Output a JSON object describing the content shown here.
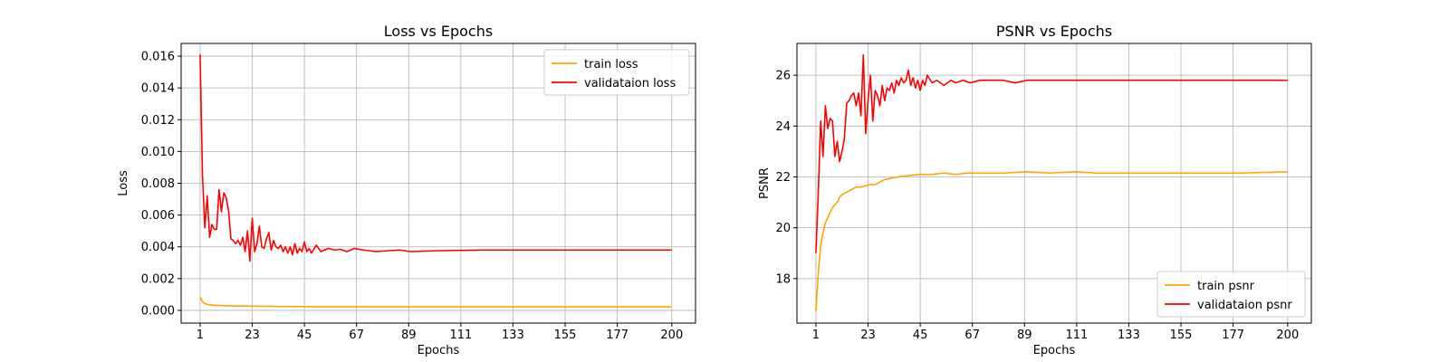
{
  "chart_data": [
    {
      "type": "line",
      "title": "Loss vs Epochs",
      "xlabel": "Epochs",
      "ylabel": "Loss",
      "xlim": [
        -7,
        210
      ],
      "ylim": [
        -0.0008,
        0.0168
      ],
      "xticks": [
        1,
        23,
        45,
        67,
        89,
        111,
        133,
        155,
        177,
        200
      ],
      "yticks": [
        0.0,
        0.002,
        0.004,
        0.006,
        0.008,
        0.01,
        0.012,
        0.014,
        0.016
      ],
      "ytick_labels": [
        "0.000",
        "0.002",
        "0.004",
        "0.006",
        "0.008",
        "0.010",
        "0.012",
        "0.014",
        "0.016"
      ],
      "grid": true,
      "legend_position": "top-right",
      "series": [
        {
          "name": "train loss",
          "color": "#ffa500",
          "x": [
            1,
            2,
            3,
            4,
            5,
            7,
            10,
            15,
            20,
            25,
            30,
            40,
            50,
            60,
            80,
            100,
            130,
            160,
            200
          ],
          "y": [
            0.00085,
            0.00055,
            0.00042,
            0.00038,
            0.00035,
            0.00032,
            0.0003,
            0.00028,
            0.00027,
            0.00026,
            0.00025,
            0.00024,
            0.00023,
            0.00023,
            0.00022,
            0.00022,
            0.00022,
            0.00022,
            0.00022
          ]
        },
        {
          "name": "validataion loss",
          "color": "#ff0000",
          "x": [
            1,
            2,
            3,
            4,
            5,
            6,
            7,
            8,
            9,
            10,
            11,
            12,
            13,
            14,
            15,
            16,
            17,
            18,
            19,
            20,
            21,
            22,
            23,
            24,
            25,
            26,
            27,
            28,
            29,
            30,
            31,
            32,
            33,
            34,
            35,
            36,
            37,
            38,
            39,
            40,
            41,
            42,
            43,
            44,
            45,
            46,
            47,
            48,
            50,
            52,
            55,
            58,
            60,
            63,
            66,
            70,
            75,
            80,
            85,
            90,
            100,
            120,
            140,
            160,
            180,
            200
          ],
          "y": [
            0.0161,
            0.0085,
            0.0052,
            0.0072,
            0.0046,
            0.0054,
            0.0051,
            0.0051,
            0.0076,
            0.0062,
            0.0074,
            0.0071,
            0.0063,
            0.0045,
            0.0044,
            0.0042,
            0.0044,
            0.0041,
            0.0046,
            0.0037,
            0.005,
            0.0031,
            0.0058,
            0.0037,
            0.0042,
            0.0053,
            0.004,
            0.0039,
            0.0045,
            0.0049,
            0.0038,
            0.0044,
            0.004,
            0.0039,
            0.0041,
            0.0037,
            0.004,
            0.0036,
            0.004,
            0.0035,
            0.0042,
            0.0036,
            0.0039,
            0.0037,
            0.0043,
            0.0037,
            0.0039,
            0.0036,
            0.0041,
            0.0037,
            0.0039,
            0.0038,
            0.00385,
            0.0037,
            0.0039,
            0.0038,
            0.0037,
            0.00375,
            0.0038,
            0.0037,
            0.00375,
            0.0038,
            0.0038,
            0.0038,
            0.0038,
            0.0038
          ]
        }
      ]
    },
    {
      "type": "line",
      "title": "PSNR vs Epochs",
      "xlabel": "Epochs",
      "ylabel": "PSNR",
      "xlim": [
        -7,
        210
      ],
      "ylim": [
        16.25,
        27.25
      ],
      "xticks": [
        1,
        23,
        45,
        67,
        89,
        111,
        133,
        155,
        177,
        200
      ],
      "yticks": [
        18,
        20,
        22,
        24,
        26
      ],
      "ytick_labels": [
        "18",
        "20",
        "22",
        "24",
        "26"
      ],
      "grid": true,
      "legend_position": "bottom-right",
      "series": [
        {
          "name": "train psnr",
          "color": "#ffa500",
          "x": [
            1,
            2,
            3,
            4,
            5,
            6,
            7,
            8,
            9,
            10,
            11,
            12,
            14,
            16,
            18,
            20,
            22,
            24,
            26,
            28,
            30,
            33,
            36,
            40,
            45,
            50,
            55,
            60,
            65,
            70,
            80,
            90,
            100,
            110,
            120,
            140,
            160,
            180,
            200
          ],
          "y": [
            16.7,
            18.2,
            19.3,
            19.8,
            20.2,
            20.4,
            20.6,
            20.8,
            20.9,
            21.0,
            21.2,
            21.3,
            21.4,
            21.5,
            21.6,
            21.6,
            21.65,
            21.7,
            21.7,
            21.8,
            21.9,
            21.95,
            22.0,
            22.05,
            22.1,
            22.1,
            22.15,
            22.1,
            22.15,
            22.15,
            22.15,
            22.2,
            22.15,
            22.2,
            22.15,
            22.15,
            22.15,
            22.15,
            22.2
          ]
        },
        {
          "name": "validataion psnr",
          "color": "#ff0000",
          "x": [
            1,
            2,
            3,
            4,
            5,
            6,
            7,
            8,
            9,
            10,
            11,
            12,
            13,
            14,
            15,
            16,
            17,
            18,
            19,
            20,
            21,
            22,
            23,
            24,
            25,
            26,
            27,
            28,
            29,
            30,
            31,
            32,
            33,
            34,
            35,
            36,
            37,
            38,
            39,
            40,
            41,
            42,
            43,
            44,
            45,
            46,
            47,
            48,
            50,
            52,
            55,
            58,
            60,
            63,
            66,
            70,
            75,
            80,
            85,
            90,
            100,
            120,
            140,
            160,
            180,
            200
          ],
          "y": [
            19.0,
            21.4,
            24.2,
            22.8,
            24.8,
            23.9,
            24.3,
            24.2,
            22.8,
            23.4,
            22.6,
            23.0,
            23.5,
            24.9,
            25.0,
            25.2,
            25.3,
            24.8,
            25.3,
            24.4,
            26.8,
            23.7,
            25.0,
            26.0,
            24.2,
            25.4,
            25.2,
            24.8,
            25.6,
            25.0,
            25.5,
            25.4,
            25.7,
            25.3,
            25.8,
            25.6,
            25.9,
            25.7,
            25.8,
            26.2,
            25.6,
            25.9,
            25.5,
            25.8,
            25.4,
            25.8,
            25.6,
            26.0,
            25.7,
            25.8,
            25.6,
            25.8,
            25.7,
            25.8,
            25.7,
            25.8,
            25.8,
            25.8,
            25.7,
            25.8,
            25.8,
            25.8,
            25.8,
            25.8,
            25.8,
            25.8
          ]
        }
      ]
    }
  ]
}
